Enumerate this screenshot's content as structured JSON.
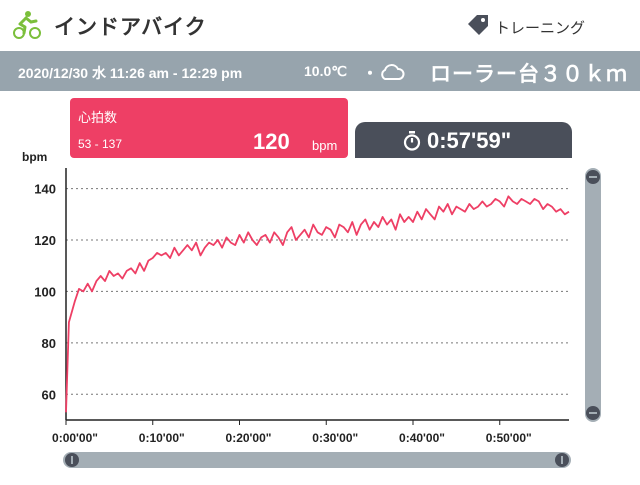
{
  "header": {
    "title": "インドアバイク",
    "category": "トレーニング"
  },
  "infobar": {
    "date_range": "2020/12/30 水 11:26 am - 12:29 pm",
    "temperature": "10.0℃",
    "separator": "・",
    "weather_icon": "cloud-icon",
    "activity": "ローラー台３０ｋｍ"
  },
  "heart_rate": {
    "label": "心拍数",
    "range": "53 - 137",
    "value": "120",
    "unit": "bpm"
  },
  "duration": {
    "icon": "stopwatch-icon",
    "value": "0:57'59\""
  },
  "colors": {
    "accent": "#ee3f65",
    "bar": "#97a4ad",
    "dark": "#4a4f5a"
  },
  "chart_data": {
    "type": "line",
    "ylabel": "bpm",
    "ylim": [
      50,
      148
    ],
    "yticks": [
      60,
      80,
      100,
      120,
      140
    ],
    "grid": "horizontal-dashed",
    "xlim_seconds": [
      0,
      3479
    ],
    "xtick_labels": [
      "0:00'00\"",
      "0:10'00\"",
      "0:20'00\"",
      "0:30'00\"",
      "0:40'00\"",
      "0:50'00\""
    ],
    "xtick_seconds": [
      0,
      600,
      1200,
      1800,
      2400,
      3000
    ],
    "series": [
      {
        "color": "#ee3f65",
        "x_seconds": [
          0,
          20,
          40,
          60,
          90,
          120,
          150,
          180,
          210,
          240,
          270,
          300,
          330,
          360,
          390,
          420,
          450,
          480,
          510,
          540,
          570,
          600,
          630,
          660,
          690,
          720,
          750,
          780,
          810,
          840,
          870,
          900,
          930,
          960,
          990,
          1020,
          1050,
          1080,
          1110,
          1140,
          1170,
          1200,
          1230,
          1260,
          1290,
          1320,
          1350,
          1380,
          1410,
          1440,
          1470,
          1500,
          1530,
          1560,
          1590,
          1620,
          1650,
          1680,
          1710,
          1740,
          1770,
          1800,
          1830,
          1860,
          1890,
          1920,
          1950,
          1980,
          2010,
          2040,
          2070,
          2100,
          2130,
          2160,
          2190,
          2220,
          2250,
          2280,
          2310,
          2340,
          2370,
          2400,
          2430,
          2460,
          2490,
          2520,
          2550,
          2580,
          2610,
          2640,
          2670,
          2700,
          2730,
          2760,
          2790,
          2820,
          2850,
          2880,
          2910,
          2940,
          2970,
          3000,
          3030,
          3060,
          3090,
          3120,
          3150,
          3180,
          3210,
          3240,
          3270,
          3300,
          3330,
          3360,
          3390,
          3420,
          3450,
          3479
        ],
        "values": [
          53,
          88,
          92,
          96,
          101,
          100,
          103,
          100,
          104,
          106,
          104,
          108,
          106,
          107,
          105,
          108,
          109,
          107,
          111,
          108,
          112,
          113,
          115,
          114,
          115,
          113,
          117,
          114,
          116,
          118,
          116,
          119,
          114,
          117,
          119,
          118,
          120,
          117,
          121,
          119,
          118,
          122,
          119,
          123,
          120,
          118,
          121,
          122,
          119,
          123,
          121,
          118,
          123,
          125,
          120,
          122,
          124,
          121,
          126,
          123,
          122,
          125,
          124,
          121,
          126,
          125,
          123,
          127,
          122,
          126,
          128,
          124,
          127,
          125,
          129,
          126,
          128,
          124,
          130,
          127,
          129,
          127,
          131,
          128,
          132,
          130,
          128,
          133,
          131,
          134,
          130,
          133,
          132,
          131,
          134,
          132,
          133,
          135,
          133,
          134,
          136,
          135,
          133,
          137,
          135,
          134,
          136,
          135,
          134,
          136,
          135,
          132,
          134,
          133,
          131,
          132,
          130,
          131
        ]
      }
    ]
  }
}
